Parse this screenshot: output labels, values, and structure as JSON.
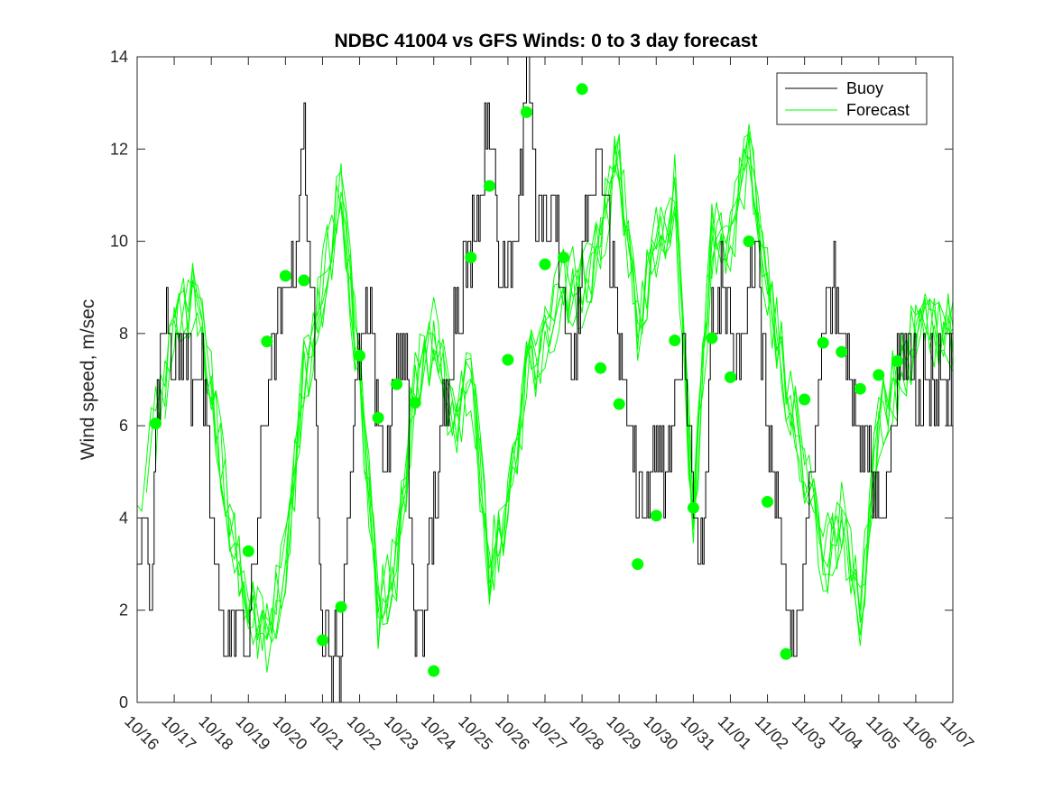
{
  "chart_data": {
    "type": "line",
    "title": "NDBC 41004 vs GFS Winds: 0 to 3 day forecast",
    "xlabel": "",
    "ylabel": "Wind speed, m/sec",
    "ylim": [
      0,
      14
    ],
    "xlim": [
      "10/16",
      "11/07"
    ],
    "x_ticks": [
      "10/16",
      "10/17",
      "10/18",
      "10/19",
      "10/20",
      "10/21",
      "10/22",
      "10/23",
      "10/24",
      "10/25",
      "10/26",
      "10/27",
      "10/28",
      "10/29",
      "10/30",
      "10/31",
      "11/01",
      "11/02",
      "11/03",
      "11/04",
      "11/05",
      "11/06",
      "11/07"
    ],
    "y_ticks": [
      0,
      2,
      4,
      6,
      8,
      10,
      12,
      14
    ],
    "grid": false,
    "legend": {
      "placement": "top-right",
      "entries": [
        "Buoy",
        "Forecast"
      ]
    },
    "colors": {
      "buoy": "#000000",
      "forecast": "#00ff00",
      "axes": "#262626"
    },
    "series": [
      {
        "name": "Buoy",
        "style": "black stair-step line",
        "x_day_offsets": [
          0.0,
          0.25,
          0.35,
          0.5,
          0.75,
          1.0,
          1.25,
          1.5,
          1.75,
          2.0,
          2.25,
          2.5,
          2.75,
          3.0,
          3.25,
          3.5,
          3.75,
          4.0,
          4.25,
          4.5,
          4.75,
          5.0,
          5.25,
          5.5,
          5.75,
          6.0,
          6.25,
          6.5,
          6.75,
          7.0,
          7.25,
          7.5,
          7.75,
          8.0,
          8.25,
          8.5,
          8.75,
          9.0,
          9.25,
          9.5,
          9.75,
          10.0,
          10.25,
          10.5,
          10.75,
          11.0,
          11.25,
          11.5,
          11.75,
          12.0,
          12.25,
          12.5,
          12.75,
          13.0,
          13.25,
          13.5,
          13.75,
          14.0,
          14.25,
          14.5,
          14.75,
          15.0,
          15.25,
          15.5,
          15.75,
          16.0,
          16.25,
          16.5,
          16.75,
          17.0,
          17.25,
          17.5,
          17.75,
          18.0,
          18.25,
          18.5,
          18.75,
          19.0,
          19.25,
          19.5,
          19.75,
          20.0,
          20.25,
          20.5,
          20.75,
          21.0
        ],
        "values": [
          3,
          4,
          2,
          6,
          9,
          7,
          8,
          7,
          7,
          4,
          2,
          1,
          2,
          1,
          4,
          7,
          8,
          9,
          10,
          12,
          8,
          2,
          1,
          1,
          5,
          8,
          9,
          6,
          5,
          8,
          7,
          1,
          2,
          4,
          6,
          8,
          9,
          10,
          11,
          13,
          9,
          10,
          10,
          14,
          11,
          10,
          11,
          8,
          7,
          10,
          11,
          12,
          10,
          8,
          6,
          5,
          4,
          6,
          5,
          6,
          8,
          4,
          3,
          8,
          9,
          8,
          7,
          10,
          9,
          6,
          4,
          2,
          1,
          3,
          6,
          8,
          9,
          8,
          7,
          6,
          5,
          4,
          5,
          7,
          8,
          7
        ]
      },
      {
        "name": "Forecast",
        "style": "several green lines from successive forecast cycles",
        "x_day_offsets": [
          0.0,
          0.5,
          1.0,
          1.5,
          2.0,
          2.5,
          3.0,
          3.5,
          4.0,
          4.5,
          5.0,
          5.5,
          6.0,
          6.5,
          7.0,
          7.5,
          8.0,
          8.5,
          9.0,
          9.5,
          10.0,
          10.5,
          11.0,
          11.5,
          12.0,
          12.5,
          13.0,
          13.5,
          14.0,
          14.5,
          15.0,
          15.5,
          16.0,
          16.5,
          17.0,
          17.5,
          18.0,
          18.5,
          19.0,
          19.5,
          20.0,
          20.5,
          21.0
        ],
        "values": [
          4,
          6,
          8,
          9,
          7,
          4,
          2,
          1.5,
          3,
          7,
          9,
          11,
          7,
          2,
          3,
          7,
          8,
          6,
          7,
          3,
          4,
          7,
          8,
          9,
          9,
          10,
          12,
          8,
          10,
          11,
          4,
          10,
          10,
          12,
          9,
          7,
          5,
          3,
          4,
          2,
          6,
          7,
          8
        ]
      },
      {
        "name": "",
        "style": "green filled dots (forecast initial values)",
        "x_day_offsets": [
          0.5,
          3.0,
          3.5,
          4.0,
          4.5,
          5.0,
          5.5,
          6.0,
          6.5,
          7.0,
          7.5,
          8.0,
          9.0,
          9.5,
          10.0,
          10.5,
          11.0,
          11.5,
          12.0,
          12.5,
          13.0,
          13.5,
          14.0,
          14.5,
          15.0,
          15.5,
          16.0,
          16.5,
          17.0,
          17.5,
          18.0,
          18.5,
          19.0,
          19.5,
          20.0,
          20.5
        ],
        "values": [
          6.05,
          3.28,
          7.83,
          9.25,
          9.15,
          1.35,
          2.07,
          7.52,
          6.17,
          6.9,
          6.5,
          0.68,
          9.65,
          11.2,
          7.43,
          12.8,
          9.5,
          9.65,
          13.3,
          7.25,
          6.47,
          3.0,
          4.05,
          7.85,
          4.22,
          7.9,
          7.05,
          10.0,
          4.35,
          1.05,
          6.57,
          7.8,
          7.6,
          6.8,
          7.1,
          7.4
        ]
      }
    ]
  }
}
